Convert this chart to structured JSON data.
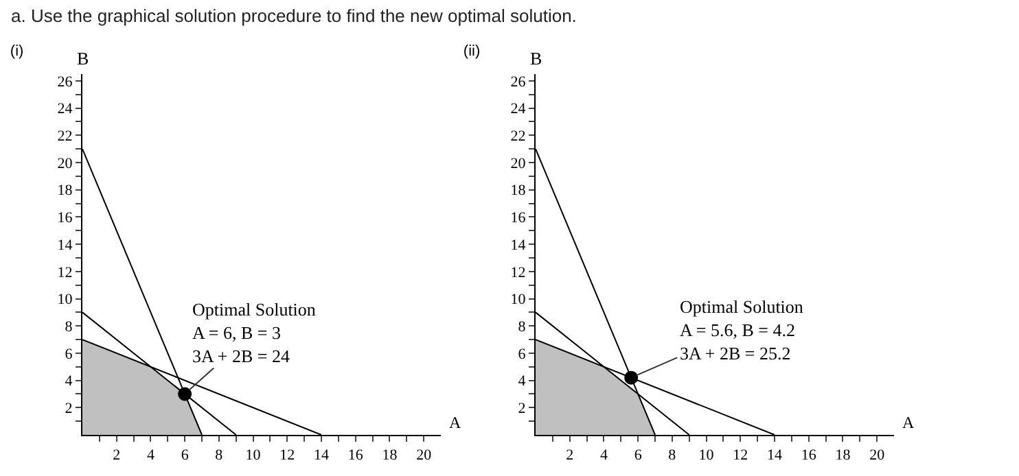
{
  "chart_data": [
    {
      "type": "line",
      "title": "(i)",
      "xlabel": "A",
      "ylabel": "B",
      "annotations": [
        "a. Use the graphical solution procedure to find the new optimal solution.",
        {
          "text": "Optimal Solution\nA = 6, B = 3\n3A + 2B = 24",
          "x": 6,
          "y": 3
        }
      ],
      "series": [
        {
          "type": "area",
          "color": "#c0c0c0",
          "x": [
            0,
            4,
            6,
            7
          ],
          "values": [
            7,
            5,
            3,
            0
          ]
        },
        {
          "type": "line",
          "color": "#000000",
          "x": [
            0,
            7
          ],
          "values": [
            21,
            0
          ]
        },
        {
          "type": "line",
          "color": "#000000",
          "x": [
            0,
            9
          ],
          "values": [
            9,
            0
          ]
        },
        {
          "type": "line",
          "color": "#000000",
          "x": [
            0,
            14
          ],
          "values": [
            7,
            0
          ]
        },
        {
          "type": "scatter",
          "color": "#000000",
          "x": [
            6
          ],
          "values": [
            3
          ]
        }
      ],
      "xlim": [
        0,
        21
      ],
      "ylim": [
        0,
        26.5
      ],
      "xticks": [
        {
          "value": 1,
          "label": null
        },
        2,
        {
          "value": 3,
          "label": null
        },
        4,
        {
          "value": 5,
          "label": null
        },
        6,
        {
          "value": 7,
          "label": null
        },
        8,
        {
          "value": 9,
          "label": null
        },
        10,
        {
          "value": 11,
          "label": null
        },
        12,
        {
          "value": 13,
          "label": null
        },
        14,
        {
          "value": 15,
          "label": null
        },
        16,
        {
          "value": 17,
          "label": null
        },
        18,
        {
          "value": 19,
          "label": null
        },
        20
      ],
      "yticks": [
        {
          "value": 1,
          "label": null
        },
        2,
        {
          "value": 3,
          "label": null
        },
        4,
        {
          "value": 5,
          "label": null
        },
        6,
        {
          "value": 7,
          "label": null
        },
        8,
        {
          "value": 9,
          "label": null
        },
        10,
        {
          "value": 11,
          "label": null
        },
        12,
        {
          "value": 13,
          "label": null
        },
        14,
        {
          "value": 15,
          "label": null
        },
        16,
        {
          "value": 17,
          "label": null
        },
        18,
        {
          "value": 19,
          "label": null
        },
        20,
        {
          "value": 21,
          "label": null
        },
        22,
        {
          "value": 23,
          "label": null
        },
        24,
        {
          "value": 25,
          "label": null
        },
        26
      ]
    },
    {
      "type": "line",
      "title": "(ii)",
      "xlabel": "A",
      "ylabel": "B",
      "annotations": [
        {
          "text": "Optimal Solution\nA = 5.6, B = 4.2\n3A + 2B = 25.2",
          "x": 5.6,
          "y": 4.2
        }
      ],
      "series": [
        {
          "type": "area",
          "color": "#c0c0c0",
          "x": [
            0,
            4,
            6,
            7
          ],
          "values": [
            7,
            5,
            3,
            0
          ]
        },
        {
          "type": "line",
          "color": "#000000",
          "x": [
            0,
            7
          ],
          "values": [
            21,
            0
          ]
        },
        {
          "type": "line",
          "color": "#000000",
          "x": [
            0,
            9
          ],
          "values": [
            9,
            0
          ]
        },
        {
          "type": "line",
          "color": "#000000",
          "x": [
            0,
            14
          ],
          "values": [
            7,
            0
          ]
        },
        {
          "type": "scatter",
          "color": "#000000",
          "x": [
            5.6
          ],
          "values": [
            4.2
          ]
        }
      ],
      "xlim": [
        0,
        21
      ],
      "ylim": [
        0,
        26.5
      ],
      "xticks": [
        {
          "value": 1,
          "label": null
        },
        2,
        {
          "value": 3,
          "label": null
        },
        4,
        {
          "value": 5,
          "label": null
        },
        6,
        {
          "value": 7,
          "label": null
        },
        8,
        {
          "value": 9,
          "label": null
        },
        10,
        {
          "value": 11,
          "label": null
        },
        12,
        {
          "value": 13,
          "label": null
        },
        14,
        {
          "value": 15,
          "label": null
        },
        16,
        {
          "value": 17,
          "label": null
        },
        18,
        {
          "value": 19,
          "label": null
        },
        20
      ],
      "yticks": [
        {
          "value": 1,
          "label": null
        },
        2,
        {
          "value": 3,
          "label": null
        },
        4,
        {
          "value": 5,
          "label": null
        },
        6,
        {
          "value": 7,
          "label": null
        },
        8,
        {
          "value": 9,
          "label": null
        },
        10,
        {
          "value": 11,
          "label": null
        },
        12,
        {
          "value": 13,
          "label": null
        },
        14,
        {
          "value": 15,
          "label": null
        },
        16,
        {
          "value": 17,
          "label": null
        },
        18,
        {
          "value": 19,
          "label": null
        },
        20,
        {
          "value": 21,
          "label": null
        },
        22,
        {
          "value": 23,
          "label": null
        },
        24,
        {
          "value": 25,
          "label": null
        },
        26
      ]
    }
  ]
}
